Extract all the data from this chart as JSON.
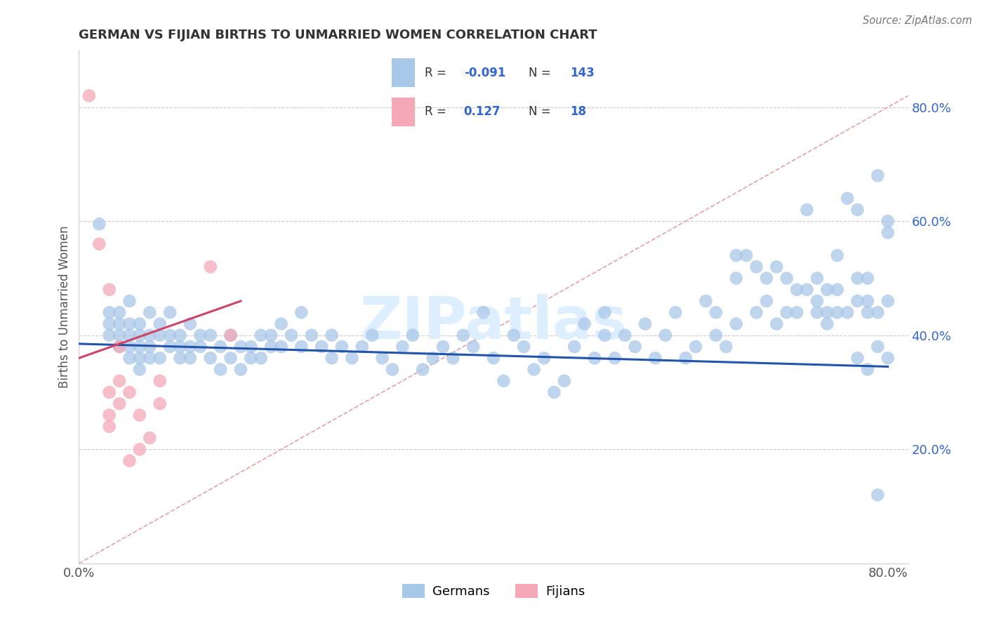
{
  "title": "GERMAN VS FIJIAN BIRTHS TO UNMARRIED WOMEN CORRELATION CHART",
  "source_text": "Source: ZipAtlas.com",
  "ylabel": "Births to Unmarried Women",
  "xlim": [
    0.0,
    0.82
  ],
  "ylim": [
    0.0,
    0.9
  ],
  "ytick_labels": [
    "20.0%",
    "40.0%",
    "60.0%",
    "80.0%"
  ],
  "ytick_values": [
    0.2,
    0.4,
    0.6,
    0.8
  ],
  "xtick_values": [
    0.0,
    0.8
  ],
  "german_color": "#A8C8E8",
  "fijian_color": "#F4A8B8",
  "german_line_color": "#2255AA",
  "fijian_line_color": "#CC4466",
  "diag_line_color": "#E8A0A8",
  "background_color": "#FFFFFF",
  "grid_color": "#CCCCCC",
  "watermark_color": "#DDEEFF",
  "watermark_text": "ZIPatlas",
  "german_scatter": [
    [
      0.02,
      0.595
    ],
    [
      0.03,
      0.42
    ],
    [
      0.03,
      0.44
    ],
    [
      0.03,
      0.4
    ],
    [
      0.04,
      0.42
    ],
    [
      0.04,
      0.44
    ],
    [
      0.04,
      0.38
    ],
    [
      0.04,
      0.4
    ],
    [
      0.05,
      0.46
    ],
    [
      0.05,
      0.42
    ],
    [
      0.05,
      0.4
    ],
    [
      0.05,
      0.38
    ],
    [
      0.05,
      0.36
    ],
    [
      0.06,
      0.42
    ],
    [
      0.06,
      0.4
    ],
    [
      0.06,
      0.38
    ],
    [
      0.06,
      0.36
    ],
    [
      0.06,
      0.34
    ],
    [
      0.07,
      0.44
    ],
    [
      0.07,
      0.4
    ],
    [
      0.07,
      0.38
    ],
    [
      0.07,
      0.36
    ],
    [
      0.08,
      0.42
    ],
    [
      0.08,
      0.4
    ],
    [
      0.08,
      0.36
    ],
    [
      0.09,
      0.44
    ],
    [
      0.09,
      0.4
    ],
    [
      0.09,
      0.38
    ],
    [
      0.1,
      0.4
    ],
    [
      0.1,
      0.38
    ],
    [
      0.1,
      0.36
    ],
    [
      0.11,
      0.42
    ],
    [
      0.11,
      0.38
    ],
    [
      0.11,
      0.36
    ],
    [
      0.12,
      0.4
    ],
    [
      0.12,
      0.38
    ],
    [
      0.13,
      0.4
    ],
    [
      0.13,
      0.36
    ],
    [
      0.14,
      0.38
    ],
    [
      0.14,
      0.34
    ],
    [
      0.15,
      0.4
    ],
    [
      0.15,
      0.36
    ],
    [
      0.16,
      0.38
    ],
    [
      0.16,
      0.34
    ],
    [
      0.17,
      0.38
    ],
    [
      0.17,
      0.36
    ],
    [
      0.18,
      0.4
    ],
    [
      0.18,
      0.36
    ],
    [
      0.19,
      0.4
    ],
    [
      0.19,
      0.38
    ],
    [
      0.2,
      0.42
    ],
    [
      0.2,
      0.38
    ],
    [
      0.21,
      0.4
    ],
    [
      0.22,
      0.44
    ],
    [
      0.22,
      0.38
    ],
    [
      0.23,
      0.4
    ],
    [
      0.24,
      0.38
    ],
    [
      0.25,
      0.36
    ],
    [
      0.25,
      0.4
    ],
    [
      0.26,
      0.38
    ],
    [
      0.27,
      0.36
    ],
    [
      0.28,
      0.38
    ],
    [
      0.29,
      0.4
    ],
    [
      0.3,
      0.36
    ],
    [
      0.31,
      0.34
    ],
    [
      0.32,
      0.38
    ],
    [
      0.33,
      0.4
    ],
    [
      0.34,
      0.34
    ],
    [
      0.35,
      0.36
    ],
    [
      0.36,
      0.38
    ],
    [
      0.37,
      0.36
    ],
    [
      0.38,
      0.4
    ],
    [
      0.39,
      0.38
    ],
    [
      0.4,
      0.44
    ],
    [
      0.41,
      0.36
    ],
    [
      0.42,
      0.32
    ],
    [
      0.43,
      0.4
    ],
    [
      0.44,
      0.38
    ],
    [
      0.45,
      0.34
    ],
    [
      0.46,
      0.36
    ],
    [
      0.47,
      0.3
    ],
    [
      0.48,
      0.32
    ],
    [
      0.49,
      0.38
    ],
    [
      0.5,
      0.42
    ],
    [
      0.51,
      0.36
    ],
    [
      0.52,
      0.44
    ],
    [
      0.52,
      0.4
    ],
    [
      0.53,
      0.36
    ],
    [
      0.54,
      0.4
    ],
    [
      0.55,
      0.38
    ],
    [
      0.56,
      0.42
    ],
    [
      0.57,
      0.36
    ],
    [
      0.58,
      0.4
    ],
    [
      0.59,
      0.44
    ],
    [
      0.6,
      0.36
    ],
    [
      0.61,
      0.38
    ],
    [
      0.62,
      0.46
    ],
    [
      0.63,
      0.44
    ],
    [
      0.63,
      0.4
    ],
    [
      0.64,
      0.38
    ],
    [
      0.65,
      0.5
    ],
    [
      0.65,
      0.54
    ],
    [
      0.65,
      0.42
    ],
    [
      0.66,
      0.54
    ],
    [
      0.67,
      0.52
    ],
    [
      0.67,
      0.44
    ],
    [
      0.68,
      0.5
    ],
    [
      0.68,
      0.46
    ],
    [
      0.69,
      0.52
    ],
    [
      0.69,
      0.42
    ],
    [
      0.7,
      0.5
    ],
    [
      0.7,
      0.44
    ],
    [
      0.71,
      0.48
    ],
    [
      0.71,
      0.44
    ],
    [
      0.72,
      0.62
    ],
    [
      0.72,
      0.48
    ],
    [
      0.73,
      0.5
    ],
    [
      0.73,
      0.46
    ],
    [
      0.73,
      0.44
    ],
    [
      0.74,
      0.48
    ],
    [
      0.74,
      0.42
    ],
    [
      0.74,
      0.44
    ],
    [
      0.75,
      0.54
    ],
    [
      0.75,
      0.48
    ],
    [
      0.75,
      0.44
    ],
    [
      0.76,
      0.64
    ],
    [
      0.76,
      0.44
    ],
    [
      0.77,
      0.62
    ],
    [
      0.77,
      0.5
    ],
    [
      0.77,
      0.36
    ],
    [
      0.77,
      0.46
    ],
    [
      0.78,
      0.5
    ],
    [
      0.78,
      0.46
    ],
    [
      0.78,
      0.34
    ],
    [
      0.78,
      0.44
    ],
    [
      0.79,
      0.68
    ],
    [
      0.79,
      0.38
    ],
    [
      0.79,
      0.44
    ],
    [
      0.79,
      0.12
    ],
    [
      0.8,
      0.6
    ],
    [
      0.8,
      0.58
    ],
    [
      0.8,
      0.36
    ],
    [
      0.8,
      0.46
    ]
  ],
  "fijian_scatter": [
    [
      0.01,
      0.82
    ],
    [
      0.02,
      0.56
    ],
    [
      0.03,
      0.48
    ],
    [
      0.03,
      0.3
    ],
    [
      0.03,
      0.26
    ],
    [
      0.03,
      0.24
    ],
    [
      0.04,
      0.38
    ],
    [
      0.04,
      0.32
    ],
    [
      0.04,
      0.28
    ],
    [
      0.05,
      0.3
    ],
    [
      0.05,
      0.18
    ],
    [
      0.06,
      0.26
    ],
    [
      0.06,
      0.2
    ],
    [
      0.07,
      0.22
    ],
    [
      0.08,
      0.32
    ],
    [
      0.08,
      0.28
    ],
    [
      0.13,
      0.52
    ],
    [
      0.15,
      0.4
    ]
  ]
}
